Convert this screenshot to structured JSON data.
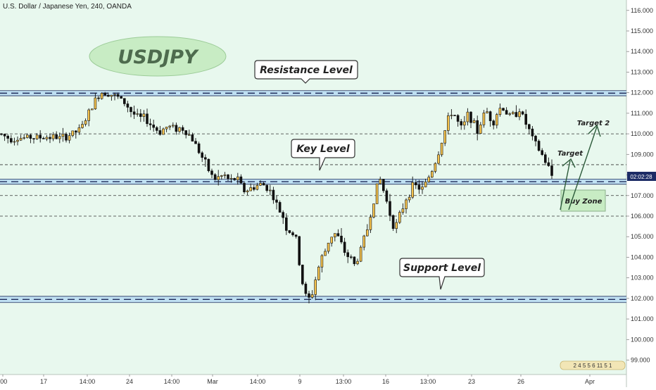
{
  "header": {
    "instrument_title": "U.S. Dollar / Japanese Yen, 240, OANDA"
  },
  "colors": {
    "background": "#e8f8ee",
    "bull_fill": "#f6c34d",
    "bear_fill": "#111111",
    "wick": "#111111",
    "band_fill": "#bfe0f2",
    "band_line": "#1e2a5a",
    "price_tag_bg": "#1d2c66",
    "watermark_ellipse": "#c8ecc4",
    "watermark_text": "#4e6b4e",
    "buy_zone_fill": "#c8ecc4",
    "arrow": "#2c5a3a"
  },
  "price_axis": {
    "ticks": [
      "116.000",
      "115.000",
      "114.000",
      "113.000",
      "112.000",
      "111.000",
      "110.000",
      "109.000",
      "108.000",
      "107.000",
      "106.000",
      "105.000",
      "104.000",
      "103.000",
      "102.000",
      "101.000",
      "100.000",
      "99.000"
    ],
    "current_price_label": "02:02:28",
    "tag_label": "2 4 5 5 6 11 5 1"
  },
  "time_axis": {
    "labels": [
      ":00",
      "17",
      "14:00",
      "24",
      "14:00",
      "Mar",
      "14:00",
      "9",
      "13:00",
      "16",
      "13:00",
      "23",
      "26",
      "Apr"
    ]
  },
  "annotations": {
    "watermark": "USDJPY",
    "resistance_label": "Resistance Level",
    "key_label": "Key Level",
    "support_label": "Support Level",
    "target_label": "Target",
    "target2_label": "Target 2",
    "buy_zone_label": "Buy Zone"
  },
  "chart_data": {
    "type": "candlestick",
    "title": "U.S. Dollar / Japanese Yen, 240, OANDA",
    "timeframe": "240",
    "ylim": [
      98.3,
      116.3
    ],
    "levels": [
      {
        "label": "Resistance Level",
        "low": 111.85,
        "high": 112.1
      },
      {
        "label": "Key Level",
        "low": 107.55,
        "high": 107.8
      },
      {
        "label": "Support Level",
        "low": 101.8,
        "high": 102.1
      }
    ],
    "dashed_lines": [
      110.0,
      108.5,
      107.0,
      106.0
    ],
    "buy_zone": "106.0 - 107.0",
    "targets": [
      108.6,
      110.1
    ],
    "path": [
      [
        0,
        110.0
      ],
      [
        6,
        109.9
      ],
      [
        12,
        109.8
      ],
      [
        18,
        109.75
      ],
      [
        24,
        109.8
      ],
      [
        30,
        109.8
      ],
      [
        36,
        109.8
      ],
      [
        42,
        109.85
      ],
      [
        48,
        109.8
      ],
      [
        54,
        109.85
      ],
      [
        60,
        109.8
      ],
      [
        66,
        109.85
      ],
      [
        72,
        109.85
      ],
      [
        78,
        109.85
      ],
      [
        84,
        109.8
      ],
      [
        90,
        109.8
      ],
      [
        96,
        109.9
      ],
      [
        102,
        110.0
      ],
      [
        108,
        110.1
      ],
      [
        114,
        110.2
      ],
      [
        120,
        110.6
      ],
      [
        126,
        111.0
      ],
      [
        132,
        111.4
      ],
      [
        138,
        111.8
      ],
      [
        144,
        112.0
      ],
      [
        150,
        112.05
      ],
      [
        156,
        111.95
      ],
      [
        162,
        111.85
      ],
      [
        168,
        111.75
      ],
      [
        174,
        111.6
      ],
      [
        180,
        111.4
      ],
      [
        186,
        111.1
      ],
      [
        192,
        110.9
      ],
      [
        198,
        110.75
      ],
      [
        204,
        110.8
      ],
      [
        210,
        110.6
      ],
      [
        216,
        110.4
      ],
      [
        222,
        110.2
      ],
      [
        228,
        110.1
      ],
      [
        234,
        110.3
      ],
      [
        240,
        110.35
      ],
      [
        246,
        110.3
      ],
      [
        252,
        110.25
      ],
      [
        258,
        110.3
      ],
      [
        264,
        110.1
      ],
      [
        270,
        109.9
      ],
      [
        276,
        109.6
      ],
      [
        282,
        109.2
      ],
      [
        288,
        108.8
      ],
      [
        294,
        108.4
      ],
      [
        300,
        108.0
      ],
      [
        306,
        107.8
      ],
      [
        312,
        107.9
      ],
      [
        318,
        108.0
      ],
      [
        324,
        107.8
      ],
      [
        330,
        107.7
      ],
      [
        336,
        107.9
      ],
      [
        342,
        107.5
      ],
      [
        348,
        107.2
      ],
      [
        354,
        107.3
      ],
      [
        360,
        107.4
      ],
      [
        366,
        107.5
      ],
      [
        372,
        107.55
      ],
      [
        378,
        107.45
      ],
      [
        384,
        107.2
      ],
      [
        390,
        106.8
      ],
      [
        396,
        106.3
      ],
      [
        402,
        106.0
      ],
      [
        408,
        105.3
      ],
      [
        414,
        105.2
      ],
      [
        420,
        105.0
      ],
      [
        426,
        103.5
      ],
      [
        432,
        102.3
      ],
      [
        438,
        101.9
      ],
      [
        444,
        102.3
      ],
      [
        450,
        103.2
      ],
      [
        456,
        103.9
      ],
      [
        462,
        104.3
      ],
      [
        468,
        104.9
      ],
      [
        474,
        105.2
      ],
      [
        480,
        105.0
      ],
      [
        486,
        104.5
      ],
      [
        492,
        104.1
      ],
      [
        498,
        104.0
      ],
      [
        504,
        103.6
      ],
      [
        510,
        104.1
      ],
      [
        516,
        104.8
      ],
      [
        522,
        105.4
      ],
      [
        528,
        106.3
      ],
      [
        534,
        107.3
      ],
      [
        540,
        107.8
      ],
      [
        546,
        107.1
      ],
      [
        552,
        106.4
      ],
      [
        558,
        105.6
      ],
      [
        564,
        105.6
      ],
      [
        570,
        106.2
      ],
      [
        576,
        106.8
      ],
      [
        582,
        107.2
      ],
      [
        588,
        107.5
      ],
      [
        594,
        107.4
      ],
      [
        600,
        107.3
      ],
      [
        606,
        107.7
      ],
      [
        612,
        108.1
      ],
      [
        618,
        108.6
      ],
      [
        624,
        109.2
      ],
      [
        630,
        109.9
      ],
      [
        636,
        110.6
      ],
      [
        642,
        111.1
      ],
      [
        648,
        110.8
      ],
      [
        654,
        110.2
      ],
      [
        660,
        110.5
      ],
      [
        666,
        111.1
      ],
      [
        672,
        110.5
      ],
      [
        678,
        110.1
      ],
      [
        684,
        110.6
      ],
      [
        690,
        111.2
      ],
      [
        696,
        110.8
      ],
      [
        702,
        110.6
      ],
      [
        708,
        111.2
      ],
      [
        714,
        111.3
      ],
      [
        720,
        111.0
      ],
      [
        726,
        110.8
      ],
      [
        732,
        111.0
      ],
      [
        738,
        111.2
      ],
      [
        744,
        110.7
      ],
      [
        750,
        110.3
      ],
      [
        756,
        109.8
      ],
      [
        762,
        109.4
      ],
      [
        768,
        109.1
      ],
      [
        774,
        108.7
      ],
      [
        780,
        108.3
      ],
      [
        786,
        107.8
      ]
    ]
  }
}
